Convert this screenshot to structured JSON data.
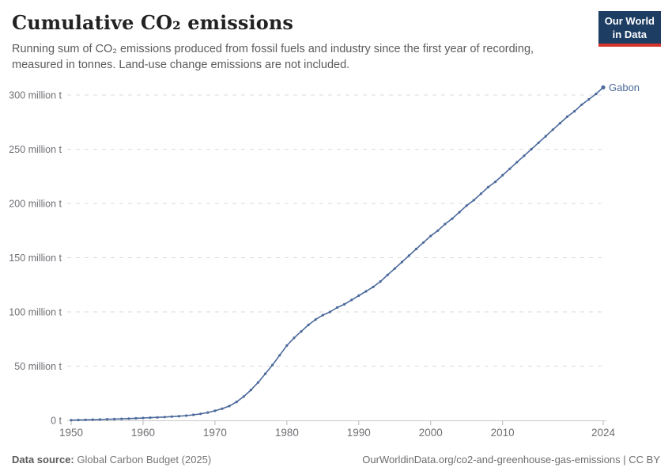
{
  "header": {
    "title": "Cumulative CO₂ emissions",
    "subtitle": "Running sum of CO₂ emissions produced from fossil fuels and industry since the first year of recording, measured in tonnes. Land-use change emissions are not included.",
    "logo": {
      "line1": "Our World",
      "line2": "in Data",
      "bg_color": "#1d3d63",
      "accent_color": "#d4352d"
    }
  },
  "footer": {
    "source_label": "Data source:",
    "source_value": "Global Carbon Budget (2025)",
    "citation": "OurWorldinData.org/co2-and-greenhouse-gas-emissions | CC BY"
  },
  "chart_data": {
    "type": "line",
    "title": "Cumulative CO₂ emissions",
    "unit": "million t",
    "grid": "dashed-horizontal",
    "legend": "end-of-line-label",
    "xlim": [
      1950,
      2024
    ],
    "ylim": [
      0,
      300
    ],
    "x_ticks": [
      1950,
      1960,
      1970,
      1980,
      1990,
      2000,
      2010,
      2024
    ],
    "y_ticks": [
      0,
      50,
      100,
      150,
      200,
      250,
      300
    ],
    "y_tick_labels": [
      "0 t",
      "50 million t",
      "100 million t",
      "150 million t",
      "200 million t",
      "250 million t",
      "300 million t"
    ],
    "series": [
      {
        "name": "Gabon",
        "color": "#4c6a9c",
        "years": [
          1950,
          1951,
          1952,
          1953,
          1954,
          1955,
          1956,
          1957,
          1958,
          1959,
          1960,
          1961,
          1962,
          1963,
          1964,
          1965,
          1966,
          1967,
          1968,
          1969,
          1970,
          1971,
          1972,
          1973,
          1974,
          1975,
          1976,
          1977,
          1978,
          1979,
          1980,
          1981,
          1982,
          1983,
          1984,
          1985,
          1986,
          1987,
          1988,
          1989,
          1990,
          1991,
          1992,
          1993,
          1994,
          1995,
          1996,
          1997,
          1998,
          1999,
          2000,
          2001,
          2002,
          2003,
          2004,
          2005,
          2006,
          2007,
          2008,
          2009,
          2010,
          2011,
          2012,
          2013,
          2014,
          2015,
          2016,
          2017,
          2018,
          2019,
          2020,
          2021,
          2022,
          2023,
          2024
        ],
        "values": [
          0.2,
          0.35,
          0.5,
          0.65,
          0.8,
          1.0,
          1.2,
          1.4,
          1.6,
          1.9,
          2.2,
          2.5,
          2.8,
          3.1,
          3.5,
          3.9,
          4.4,
          5.1,
          6.0,
          7.2,
          8.8,
          10.8,
          13.2,
          17,
          22,
          28,
          35,
          43,
          51,
          60,
          69,
          76,
          82,
          88,
          93,
          97,
          100,
          104,
          107,
          111,
          115,
          119,
          123,
          128,
          134,
          140,
          146,
          152,
          158,
          164,
          170,
          175,
          181,
          186,
          192,
          198,
          203,
          209,
          215,
          220,
          226,
          232,
          238,
          244,
          250,
          256,
          262,
          268,
          274,
          280,
          285,
          291,
          296,
          301,
          307
        ]
      }
    ]
  }
}
